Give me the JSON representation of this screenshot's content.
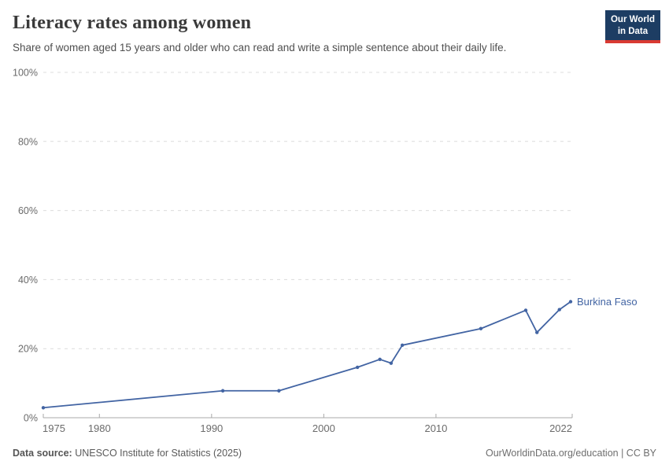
{
  "header": {
    "title": "Literacy rates among women",
    "subtitle": "Share of women aged 15 years and older who can read and write a simple sentence about their daily life.",
    "logo_line1": "Our World",
    "logo_line2": "in Data"
  },
  "footer": {
    "source_label": "Data source:",
    "source_value": " UNESCO Institute for Statistics (2025)",
    "right_text": "OurWorldinData.org/education | CC BY"
  },
  "colors": {
    "series_blue": "#4264a3",
    "logo_navy": "#1d3d63",
    "logo_red": "#d93a32",
    "grid_gray": "#dcdcdc",
    "axis_gray": "#a9a9a9",
    "tick_text_gray": "#6b6b6b"
  },
  "chart_data": {
    "type": "line",
    "title": "Literacy rates among women",
    "xlabel": "",
    "ylabel": "",
    "xlim": [
      1975,
      2022
    ],
    "ylim": [
      0,
      100
    ],
    "grid": "dashed-horizontal",
    "legend_position": "end-of-line-label",
    "x_ticks": [
      1975,
      1980,
      1990,
      2000,
      2010,
      2022
    ],
    "y_ticks": [
      0,
      20,
      40,
      60,
      80,
      100
    ],
    "y_tick_suffix": "%",
    "series": [
      {
        "name": "Burkina Faso",
        "end_label": "Burkina Faso",
        "points": [
          {
            "year": 1975,
            "value": 2.9
          },
          {
            "year": 1991,
            "value": 7.8
          },
          {
            "year": 1996,
            "value": 7.8
          },
          {
            "year": 2003,
            "value": 14.6
          },
          {
            "year": 2005,
            "value": 16.9
          },
          {
            "year": 2006,
            "value": 15.8
          },
          {
            "year": 2007,
            "value": 21.0
          },
          {
            "year": 2014,
            "value": 25.8
          },
          {
            "year": 2018,
            "value": 31.1
          },
          {
            "year": 2019,
            "value": 24.7
          },
          {
            "year": 2021,
            "value": 31.3
          },
          {
            "year": 2022,
            "value": 33.6
          }
        ]
      }
    ]
  }
}
